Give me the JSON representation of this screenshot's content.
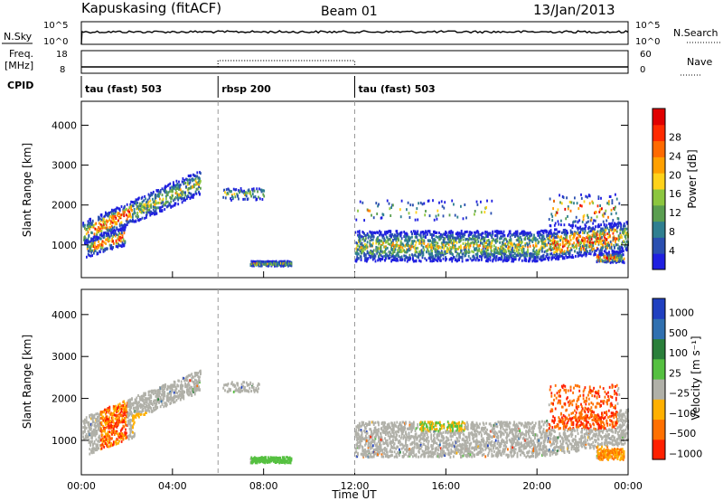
{
  "header": {
    "station": "Kapuskasing (fitACF)",
    "beam": "Beam 01",
    "date": "13/Jan/2013"
  },
  "sky_panel": {
    "left_label": "N.Sky",
    "left_ticks": [
      "10^5",
      "10^0"
    ],
    "right_ticks": [
      "10^5",
      "10^0"
    ],
    "right_label": "N.Search"
  },
  "freq_panel": {
    "left_label_1": "Freq.",
    "left_label_2": "[MHz]",
    "left_ticks": [
      "18",
      "8"
    ],
    "right_ticks": [
      "60",
      "0"
    ],
    "right_label": "Nave"
  },
  "cpid": {
    "label": "CPID",
    "segments": [
      {
        "name": "tau (fast) 503",
        "start_hour": 0,
        "end_hour": 6
      },
      {
        "name": "rbsp 200",
        "start_hour": 6,
        "end_hour": 12
      },
      {
        "name": "tau (fast) 503",
        "start_hour": 12,
        "end_hour": 24
      }
    ]
  },
  "chart_data": [
    {
      "type": "heatmap",
      "quantity": "Power",
      "ylabel": "Slant Range [km]",
      "xlim": [
        0,
        24
      ],
      "ylim": [
        180,
        4600
      ],
      "yticks": [
        "1000",
        "2000",
        "3000",
        "4000"
      ],
      "colorbar_label": "Power [dB]",
      "colorbar_ticks": [
        "4",
        "8",
        "12",
        "16",
        "20",
        "24",
        "28"
      ],
      "colorscale": [
        "#1f1fe0",
        "#2a4fb0",
        "#2f7f90",
        "#5a9e50",
        "#8cc63f",
        "#ffd21a",
        "#ffa000",
        "#ff6a00",
        "#ff2a00",
        "#e00000"
      ],
      "cpid_boundaries_hours": [
        6,
        12
      ]
    },
    {
      "type": "heatmap",
      "quantity": "Velocity",
      "ylabel": "Slant Range [km]",
      "xlabel": "Time UT",
      "xticks": [
        "00:00",
        "04:00",
        "08:00",
        "12:00",
        "16:00",
        "20:00",
        "00:00"
      ],
      "xlim": [
        0,
        24
      ],
      "ylim": [
        180,
        4600
      ],
      "yticks": [
        "1000",
        "2000",
        "3000",
        "4000"
      ],
      "colorbar_label": "Velocity [m s⁻¹]",
      "colorbar_ticks": [
        "1000",
        "500",
        "100",
        "25",
        "−25",
        "−100",
        "−500",
        "−1000"
      ],
      "colorscale": [
        "#2040c0",
        "#3070b0",
        "#2a7f3a",
        "#55c040",
        "#b0b0a8",
        "#ffb000",
        "#ff7000",
        "#ff2000"
      ],
      "cpid_boundaries_hours": [
        6,
        12
      ]
    }
  ]
}
